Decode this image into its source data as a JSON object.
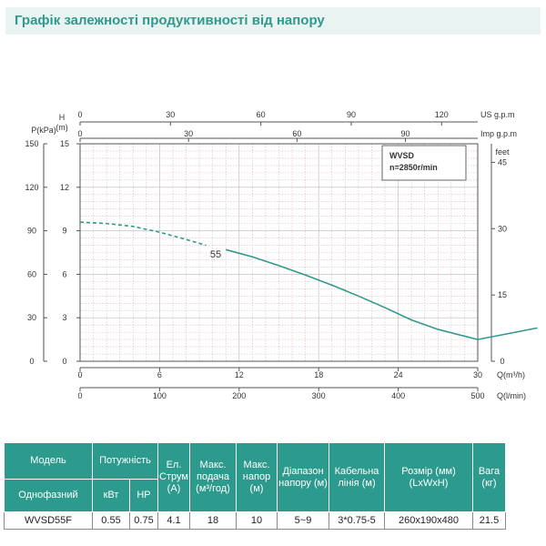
{
  "header": {
    "title": "Графік залежності продуктивності від напору"
  },
  "chart_data": {
    "type": "line",
    "model_box": {
      "model": "WVSD",
      "speed": "n=2850r/min"
    },
    "curve_label": "55",
    "left_axes": {
      "pressure": {
        "title": "P(kPa)",
        "ticks": [
          "0",
          "30",
          "60",
          "90",
          "120",
          "150"
        ],
        "range": [
          0,
          150
        ]
      },
      "head": {
        "title": "H",
        "unit": "(m)",
        "ticks": [
          "0",
          "3",
          "6",
          "9",
          "12",
          "15"
        ],
        "range": [
          0,
          15
        ]
      }
    },
    "right_axis": {
      "title": "feet",
      "ticks": [
        "0",
        "15",
        "30",
        "45"
      ],
      "range": [
        0,
        49.2
      ]
    },
    "top_axes": {
      "us_gpm": {
        "label": "US g.p.m",
        "ticks": [
          "0",
          "30",
          "60",
          "90",
          "120"
        ],
        "range": [
          0,
          132
        ]
      },
      "imp_gpm": {
        "label": "Imp g.p.m",
        "ticks": [
          "0",
          "30",
          "60",
          "90"
        ],
        "range": [
          0,
          110
        ]
      }
    },
    "bottom_axes": {
      "q_m3h": {
        "label": "Q(m³/h)",
        "ticks": [
          "0",
          "6",
          "12",
          "18",
          "24",
          "30"
        ],
        "range": [
          0,
          30
        ]
      },
      "q_lmin": {
        "label": "Q(l/min)",
        "ticks": [
          "0",
          "100",
          "200",
          "300",
          "400",
          "500"
        ],
        "range": [
          0,
          500
        ]
      }
    },
    "series": [
      {
        "dashed": {
          "x": [
            0,
            2,
            4,
            6,
            8,
            9.5
          ],
          "y": [
            9.6,
            9.5,
            9.3,
            8.9,
            8.4,
            8.0
          ]
        },
        "solid": {
          "x": [
            11,
            13,
            15,
            17,
            19,
            21,
            23,
            25,
            27,
            30,
            34.5
          ],
          "y": [
            7.7,
            7.2,
            6.6,
            5.95,
            5.25,
            4.5,
            3.7,
            2.85,
            2.2,
            1.5,
            2.3
          ]
        }
      }
    ],
    "grid": true
  },
  "table": {
    "headers_top": [
      "Модель",
      "Потужність",
      "Ел. Струм (А)",
      "Макс. подача (м³/год)",
      "Макс. напор (м)",
      "Діапазон напору (м)",
      "Кабельна лінія (м)",
      "Розмір (мм) (LxWxH)",
      "Вага (кг)"
    ],
    "headers_bottom": [
      "Однофазний",
      "кВт",
      "HP"
    ],
    "row": [
      "WVSD55F",
      "0.55",
      "0.75",
      "4.1",
      "18",
      "10",
      "5~9",
      "3*0.75-5",
      "260x190x480",
      "21.5"
    ]
  }
}
